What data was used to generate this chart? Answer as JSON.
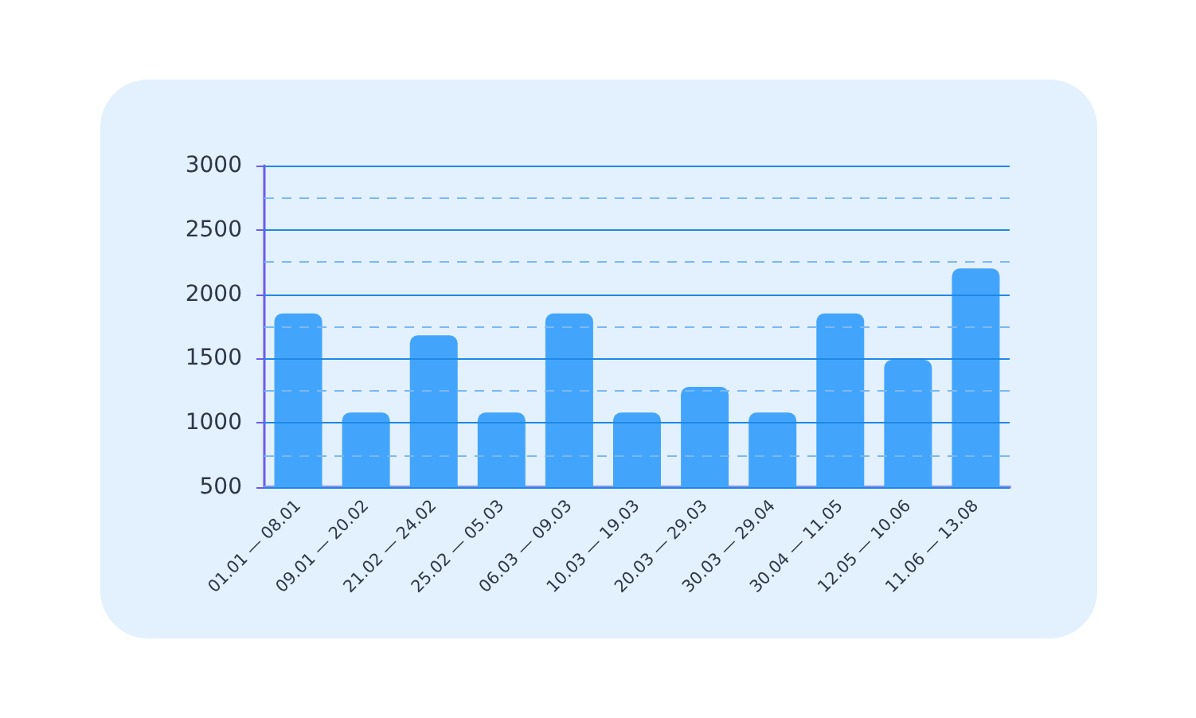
{
  "chart_data": {
    "type": "bar",
    "categories": [
      "01.01 — 08.01",
      "09.01 — 20.02",
      "21.02 — 24.02",
      "25.02 — 05.03",
      "06.03 — 09.03",
      "10.03 — 19.03",
      "20.03 — 29.03",
      "30.03 — 29.04",
      "30.04 — 11.05",
      "12.05 — 10.06",
      "11.06 — 13.08"
    ],
    "values": [
      1850,
      1080,
      1680,
      1080,
      1850,
      1080,
      1280,
      1080,
      1850,
      1490,
      2200
    ],
    "color": "#42a5fb",
    "ylim": [
      500,
      3000
    ],
    "yticks": [
      500,
      {
        "value": 750,
        "label": null
      },
      1000,
      {
        "value": 1250,
        "label": null
      },
      1500,
      {
        "value": 1750,
        "label": null
      },
      2000,
      {
        "value": 2250,
        "label": null
      },
      2500,
      {
        "value": 2750,
        "label": null
      },
      3000
    ],
    "grid": "y"
  }
}
